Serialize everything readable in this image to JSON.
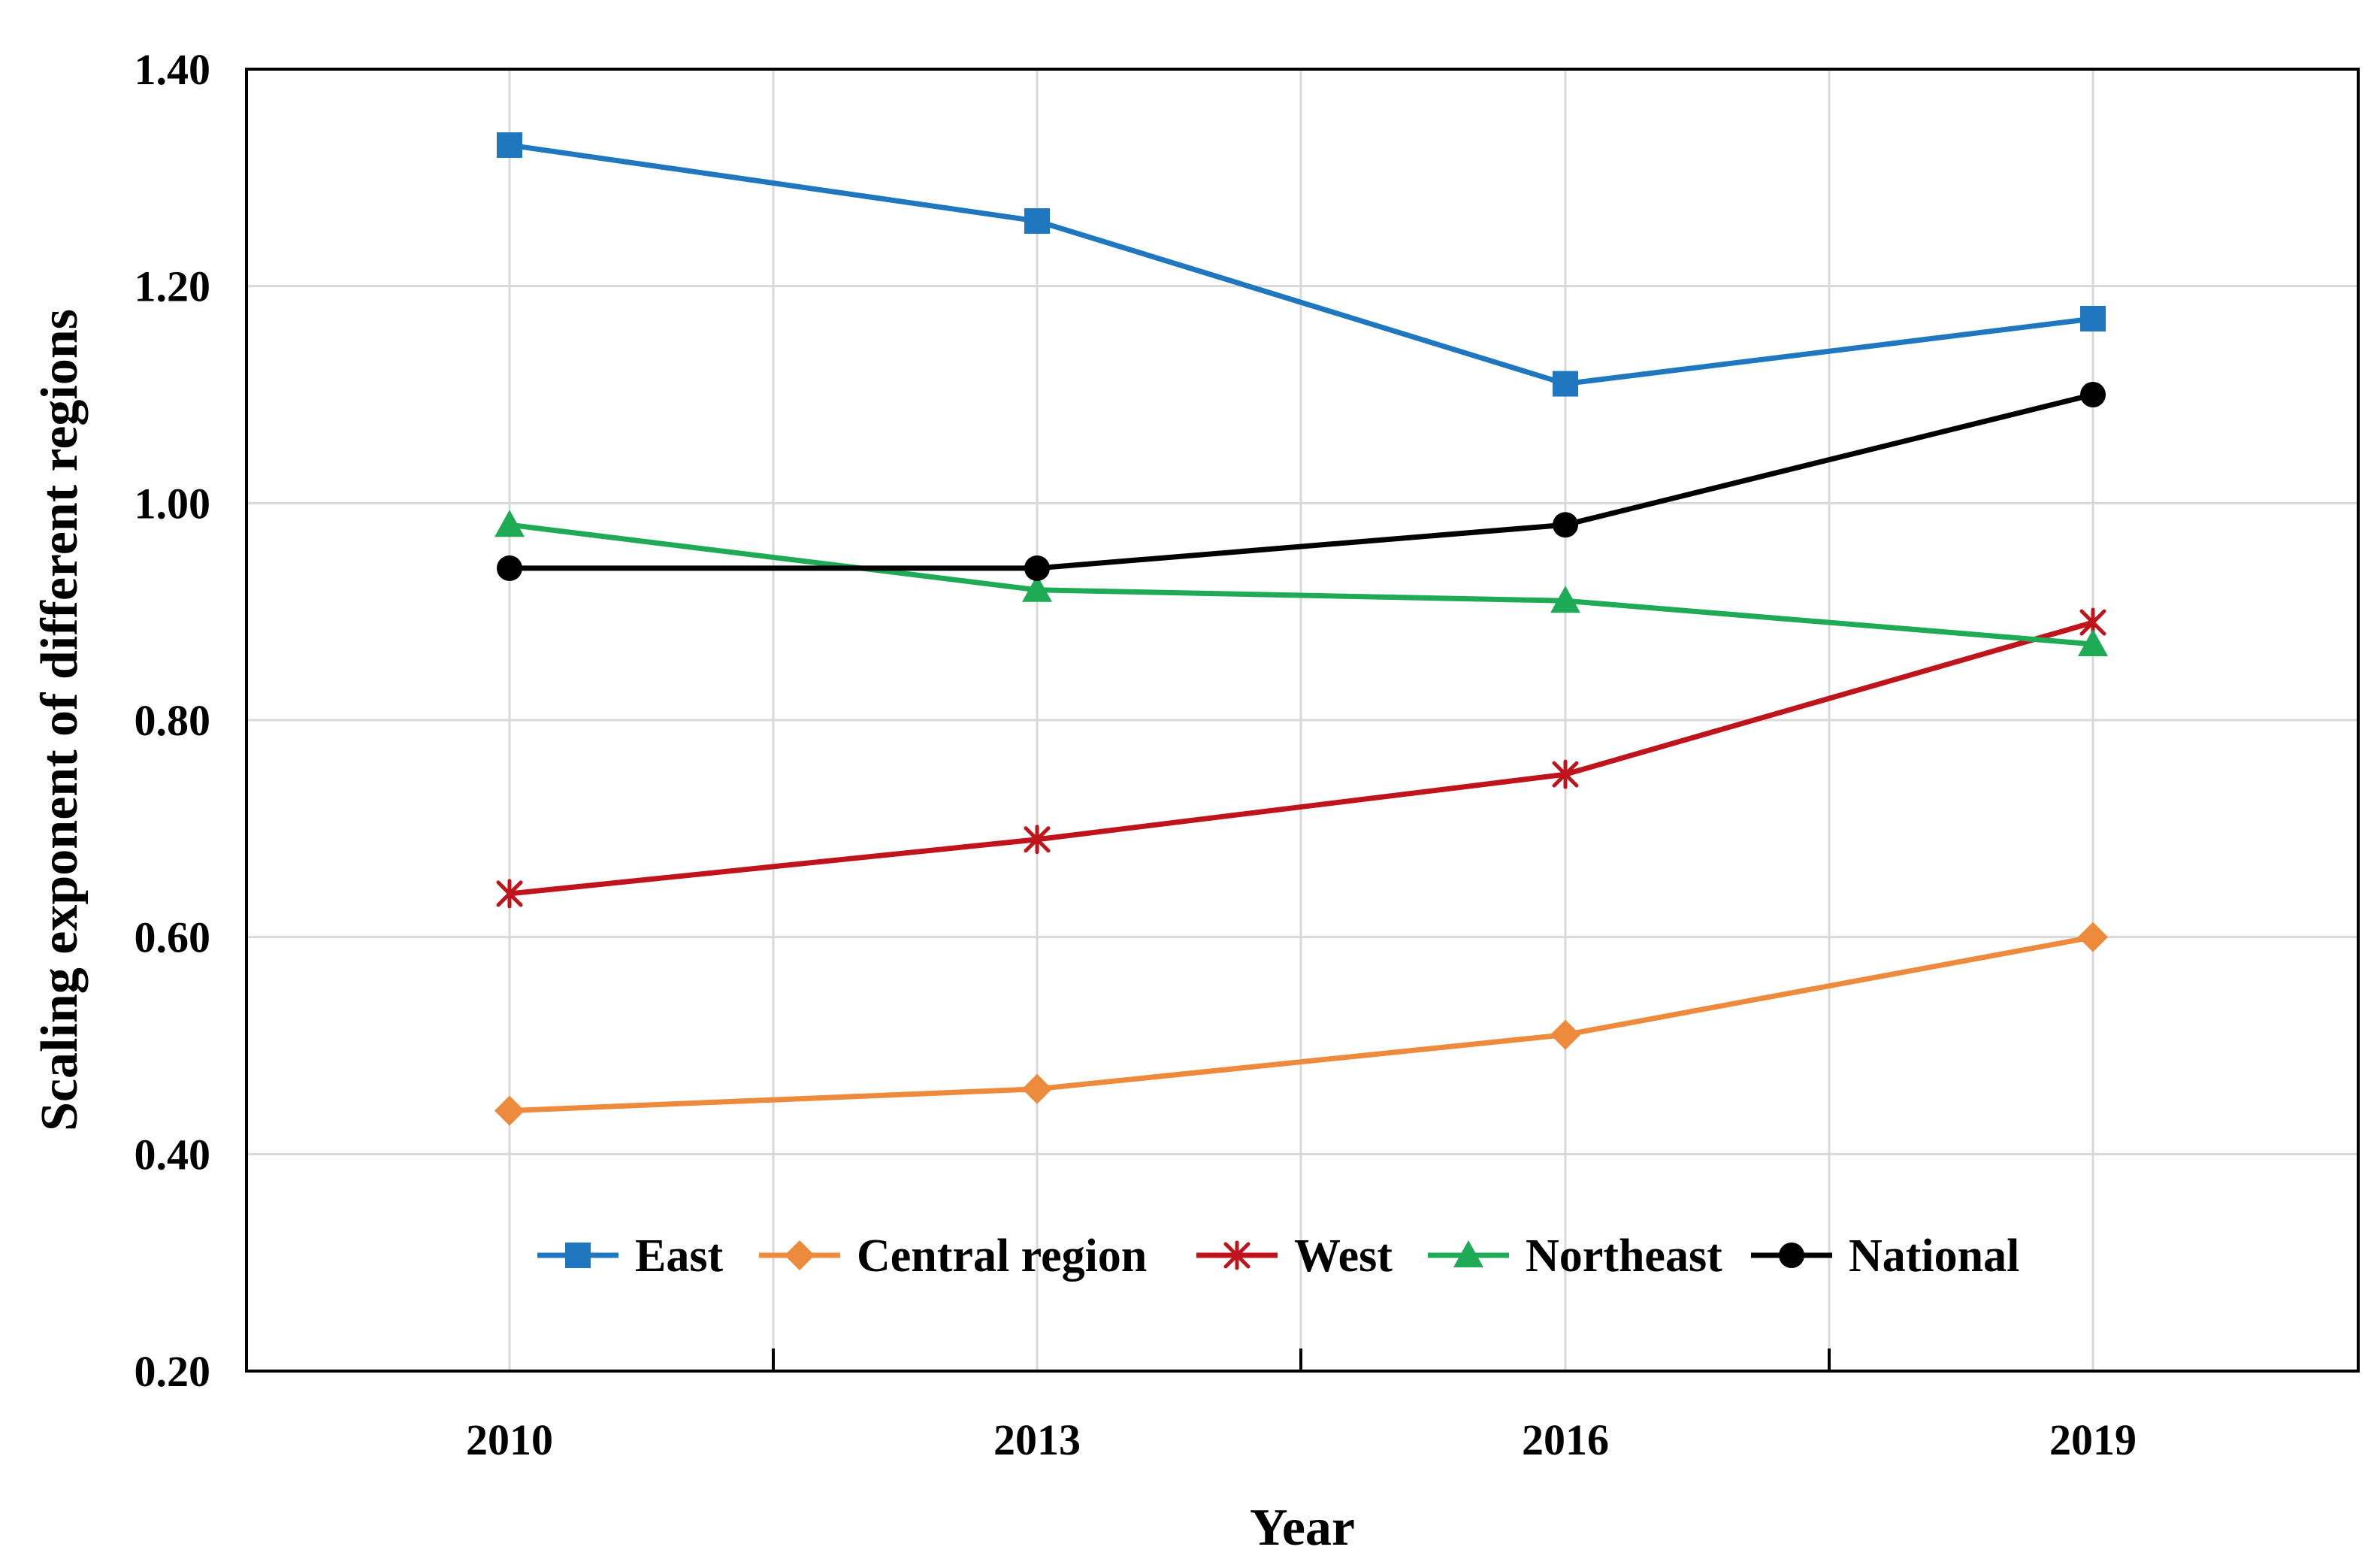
{
  "chart_data": {
    "type": "line",
    "title": "",
    "xlabel": "Year",
    "ylabel": "Scaling exponent of different regions",
    "categories": [
      "2010",
      "2013",
      "2016",
      "2019"
    ],
    "ylim": [
      0.2,
      1.4
    ],
    "yticks": [
      "0.20",
      "0.40",
      "0.60",
      "0.80",
      "1.00",
      "1.20",
      "1.40"
    ],
    "grid": true,
    "legend_position": "bottom-center inside",
    "series": [
      {
        "name": "East",
        "values": [
          1.33,
          1.26,
          1.11,
          1.17
        ],
        "color": "#1f77c0",
        "marker": "square"
      },
      {
        "name": "Central region",
        "values": [
          0.44,
          0.46,
          0.51,
          0.6
        ],
        "color": "#ed8a3c",
        "marker": "diamond"
      },
      {
        "name": "West",
        "values": [
          0.64,
          0.69,
          0.75,
          0.89
        ],
        "color": "#c0141c",
        "marker": "asterisk"
      },
      {
        "name": "Northeast",
        "values": [
          0.98,
          0.92,
          0.91,
          0.87
        ],
        "color": "#1faa55",
        "marker": "triangle"
      },
      {
        "name": "National",
        "values": [
          0.94,
          0.94,
          0.98,
          1.1
        ],
        "color": "#000000",
        "marker": "circle"
      }
    ]
  }
}
